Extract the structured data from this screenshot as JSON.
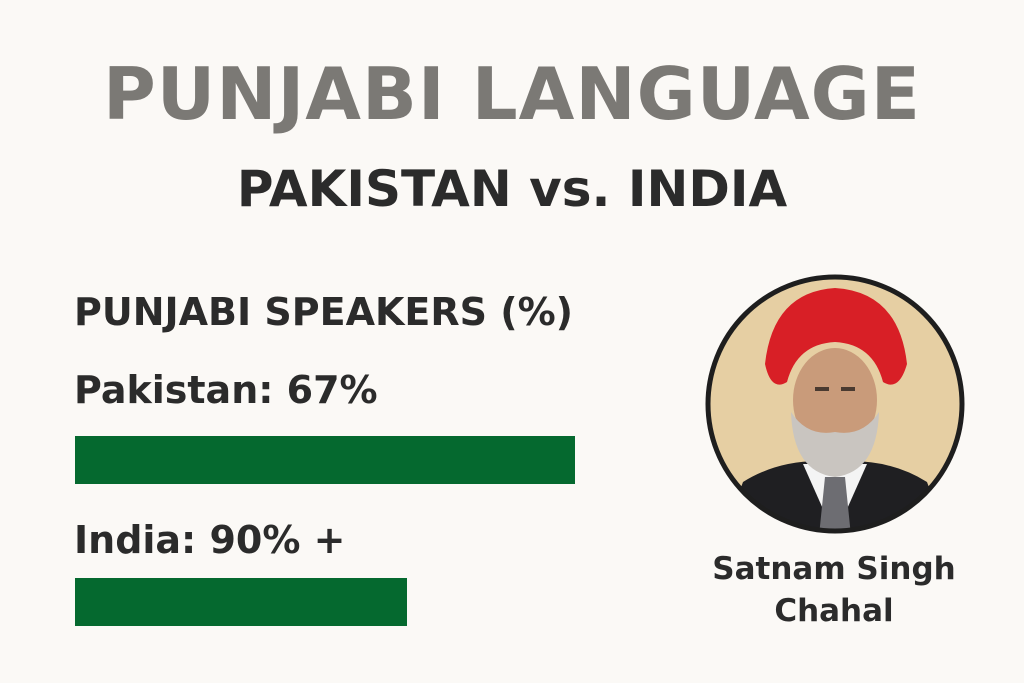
{
  "header": {
    "title": "PUNJABI LANGUAGE",
    "subtitle": "PAKISTAN vs. INDIA"
  },
  "section": {
    "heading": "PUNJABI SPEAKERS (%)",
    "items": [
      {
        "label": "Pakistan: 67%"
      },
      {
        "label": "India: 90% +"
      }
    ]
  },
  "person": {
    "name": "Satnam Singh Chahal"
  }
}
